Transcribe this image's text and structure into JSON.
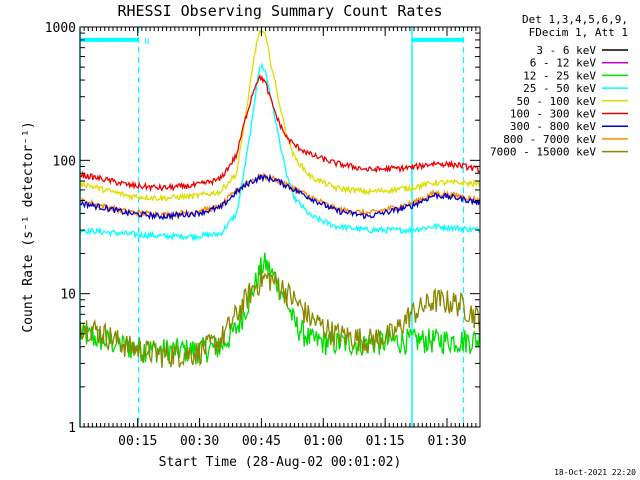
{
  "chart_data": {
    "type": "line",
    "title": "RHESSI Observing Summary Count Rates",
    "xlabel": "Start Time (28-Aug-02 00:01:02)",
    "ylabel": "Count Rate (s⁻¹ detector⁻¹)",
    "yscale": "log",
    "ylim": [
      1,
      1000
    ],
    "xlim_minutes": [
      0,
      97
    ],
    "y_ticks": [
      "1",
      "10",
      "100",
      "1000"
    ],
    "x_ticks": [
      {
        "label": "00:15",
        "minute": 14
      },
      {
        "label": "00:30",
        "minute": 29
      },
      {
        "label": "00:45",
        "minute": 44
      },
      {
        "label": "01:00",
        "minute": 59
      },
      {
        "label": "01:15",
        "minute": 74
      },
      {
        "label": "01:30",
        "minute": 89
      }
    ],
    "legend_header": [
      "Det 1,3,4,5,6,9,",
      "FDecim 1, Att 1"
    ],
    "legend_position": "right",
    "timestamp": "18-Oct-2021 22:20",
    "night_marker_label": "N",
    "markers": {
      "solid_lines_minutes": [
        0,
        80.5
      ],
      "dashed_lines_minutes": [
        14.2,
        93
      ],
      "night_bars": [
        [
          0,
          14.2
        ],
        [
          80.5,
          93
        ]
      ]
    },
    "series": [
      {
        "name": "3 - 6 keV",
        "color": "#000000",
        "x": [],
        "values": []
      },
      {
        "name": "6 - 12 keV",
        "color": "#cc00cc",
        "x": [],
        "values": []
      },
      {
        "name": "12 - 25 keV",
        "color": "#00dd00",
        "x": [
          0,
          6,
          12,
          20,
          28,
          34,
          38,
          41,
          43,
          44,
          45,
          46,
          48,
          50,
          52,
          56,
          62,
          70,
          80,
          86,
          92,
          97
        ],
        "values": [
          5,
          4.5,
          4,
          3.8,
          3.8,
          4,
          5.5,
          9,
          13,
          16,
          17,
          15,
          12,
          9,
          6,
          4.5,
          4.3,
          4.3,
          4.5,
          4.5,
          4.5,
          4.5
        ]
      },
      {
        "name": "25 - 50 keV",
        "color": "#00ffff",
        "x": [
          0,
          6,
          12,
          20,
          28,
          34,
          38,
          40,
          42,
          43,
          44,
          45,
          46,
          48,
          50,
          52,
          56,
          62,
          70,
          80,
          86,
          92,
          97
        ],
        "values": [
          30,
          29,
          28,
          27,
          27,
          28,
          40,
          90,
          220,
          420,
          520,
          460,
          330,
          160,
          80,
          52,
          38,
          32,
          30,
          30,
          32,
          31,
          30
        ]
      },
      {
        "name": "50 - 100 keV",
        "color": "#dddd00",
        "x": [
          0,
          6,
          12,
          20,
          28,
          34,
          38,
          40,
          42,
          43,
          44,
          45,
          46,
          48,
          50,
          52,
          56,
          62,
          70,
          80,
          86,
          92,
          97
        ],
        "values": [
          68,
          60,
          54,
          52,
          54,
          58,
          80,
          200,
          520,
          820,
          950,
          850,
          600,
          300,
          160,
          105,
          75,
          62,
          58,
          62,
          68,
          68,
          66
        ]
      },
      {
        "name": "100 - 300 keV",
        "color": "#ee0000",
        "x": [
          0,
          6,
          12,
          20,
          28,
          34,
          38,
          40,
          42,
          43,
          44,
          45,
          46,
          48,
          50,
          52,
          56,
          62,
          70,
          80,
          86,
          92,
          97
        ],
        "values": [
          78,
          72,
          65,
          62,
          65,
          72,
          110,
          200,
          330,
          400,
          420,
          380,
          300,
          200,
          150,
          130,
          110,
          95,
          85,
          88,
          95,
          92,
          85
        ]
      },
      {
        "name": "300 - 800 keV",
        "color": "#0000cc",
        "x": [
          0,
          6,
          12,
          20,
          28,
          34,
          38,
          41,
          44,
          47,
          50,
          56,
          62,
          70,
          80,
          86,
          92,
          97
        ],
        "values": [
          48,
          44,
          40,
          38,
          40,
          44,
          58,
          68,
          75,
          72,
          65,
          52,
          42,
          38,
          45,
          55,
          52,
          48
        ]
      },
      {
        "name": "800 - 7000 keV",
        "color": "#ff8800",
        "x": [
          0,
          6,
          12,
          20,
          28,
          34,
          38,
          41,
          44,
          47,
          50,
          56,
          62,
          70,
          80,
          86,
          92,
          97
        ],
        "values": [
          50,
          45,
          41,
          39,
          41,
          45,
          60,
          70,
          76,
          73,
          66,
          53,
          43,
          40,
          47,
          57,
          54,
          50
        ]
      },
      {
        "name": "7000 - 15000 keV",
        "color": "#888800",
        "x": [
          0,
          6,
          12,
          20,
          28,
          34,
          38,
          41,
          44,
          46,
          48,
          52,
          56,
          62,
          70,
          76,
          80,
          86,
          92,
          97
        ],
        "values": [
          6,
          5,
          4,
          3.5,
          3.6,
          4.5,
          7,
          10,
          13,
          13,
          12,
          9,
          6.5,
          5,
          4.5,
          5,
          7,
          9,
          8.5,
          6.5
        ]
      }
    ]
  }
}
